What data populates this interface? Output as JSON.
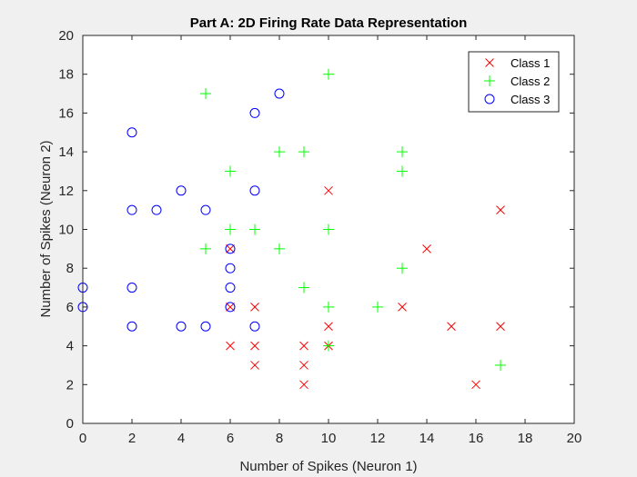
{
  "chart_data": {
    "type": "scatter",
    "title": "Part A: 2D Firing Rate Data Representation",
    "xlabel": "Number of Spikes (Neuron 1)",
    "ylabel": "Number of Spikes (Neuron 2)",
    "xlim": [
      0,
      20
    ],
    "ylim": [
      0,
      20
    ],
    "xticks": [
      0,
      2,
      4,
      6,
      8,
      10,
      12,
      14,
      16,
      18,
      20
    ],
    "yticks": [
      0,
      2,
      4,
      6,
      8,
      10,
      12,
      14,
      16,
      18,
      20
    ],
    "grid": false,
    "legend_position": "top-right",
    "series": [
      {
        "name": "Class 1",
        "marker": "x",
        "color": "#ff0000",
        "points": [
          [
            6,
            4
          ],
          [
            7,
            4
          ],
          [
            7,
            3
          ],
          [
            7,
            6
          ],
          [
            6,
            6
          ],
          [
            6,
            9
          ],
          [
            9,
            4
          ],
          [
            9,
            3
          ],
          [
            9,
            2
          ],
          [
            10,
            5
          ],
          [
            10,
            4
          ],
          [
            10,
            12
          ],
          [
            13,
            6
          ],
          [
            14,
            9
          ],
          [
            15,
            5
          ],
          [
            16,
            2
          ],
          [
            17,
            5
          ],
          [
            17,
            11
          ]
        ]
      },
      {
        "name": "Class 2",
        "marker": "+",
        "color": "#00ff00",
        "points": [
          [
            5,
            17
          ],
          [
            5,
            9
          ],
          [
            6,
            13
          ],
          [
            6,
            10
          ],
          [
            7,
            10
          ],
          [
            8,
            14
          ],
          [
            8,
            9
          ],
          [
            9,
            14
          ],
          [
            9,
            7
          ],
          [
            10,
            18
          ],
          [
            10,
            10
          ],
          [
            10,
            6
          ],
          [
            10,
            4
          ],
          [
            12,
            6
          ],
          [
            13,
            14
          ],
          [
            13,
            13
          ],
          [
            13,
            8
          ],
          [
            17,
            3
          ]
        ]
      },
      {
        "name": "Class 3",
        "marker": "o",
        "color": "#0000ff",
        "points": [
          [
            0,
            7
          ],
          [
            0,
            6
          ],
          [
            2,
            15
          ],
          [
            2,
            11
          ],
          [
            2,
            7
          ],
          [
            2,
            5
          ],
          [
            3,
            11
          ],
          [
            4,
            12
          ],
          [
            4,
            5
          ],
          [
            5,
            11
          ],
          [
            5,
            5
          ],
          [
            6,
            9
          ],
          [
            6,
            8
          ],
          [
            6,
            7
          ],
          [
            6,
            6
          ],
          [
            7,
            16
          ],
          [
            7,
            12
          ],
          [
            7,
            5
          ],
          [
            8,
            17
          ]
        ]
      }
    ]
  }
}
